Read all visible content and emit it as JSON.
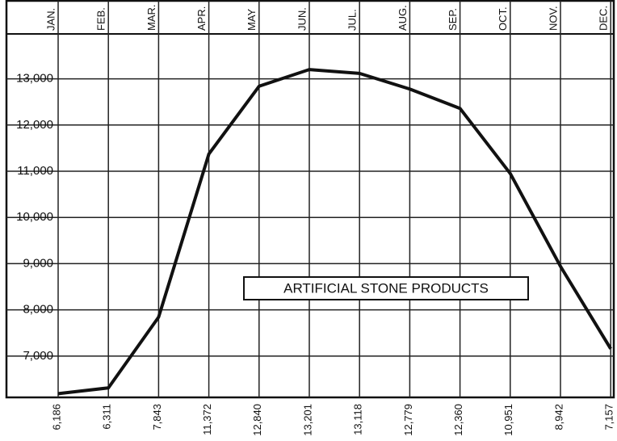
{
  "chart_data": {
    "type": "line",
    "annotation": "ARTIFICIAL STONE PRODUCTS",
    "categories": [
      "JAN.",
      "FEB.",
      "MAR.",
      "APR.",
      "MAY",
      "JUN.",
      "JUL.",
      "AUG.",
      "SEP.",
      "OCT.",
      "NOV.",
      "DEC."
    ],
    "series": [
      {
        "color": "#111111",
        "values": [
          6186,
          6311,
          7843,
          11372,
          12840,
          13201,
          13118,
          12779,
          12360,
          10951,
          8942,
          7157
        ],
        "value_labels": [
          "6,186",
          "6,311",
          "7,843",
          "11,372",
          "12,840",
          "13,201",
          "13,118",
          "12,779",
          "12,360",
          "10,951",
          "8,942",
          "7,157"
        ]
      }
    ],
    "ylim": [
      6100,
      14000
    ],
    "yticks": [
      {
        "value": 7000,
        "label": "7,000"
      },
      {
        "value": 8000,
        "label": "8,000"
      },
      {
        "value": 9000,
        "label": "9,000"
      },
      {
        "value": 10000,
        "label": "10,000"
      },
      {
        "value": 11000,
        "label": "11,000"
      },
      {
        "value": 12000,
        "label": "12,000"
      },
      {
        "value": 13000,
        "label": "13,000"
      }
    ],
    "grid": true
  }
}
